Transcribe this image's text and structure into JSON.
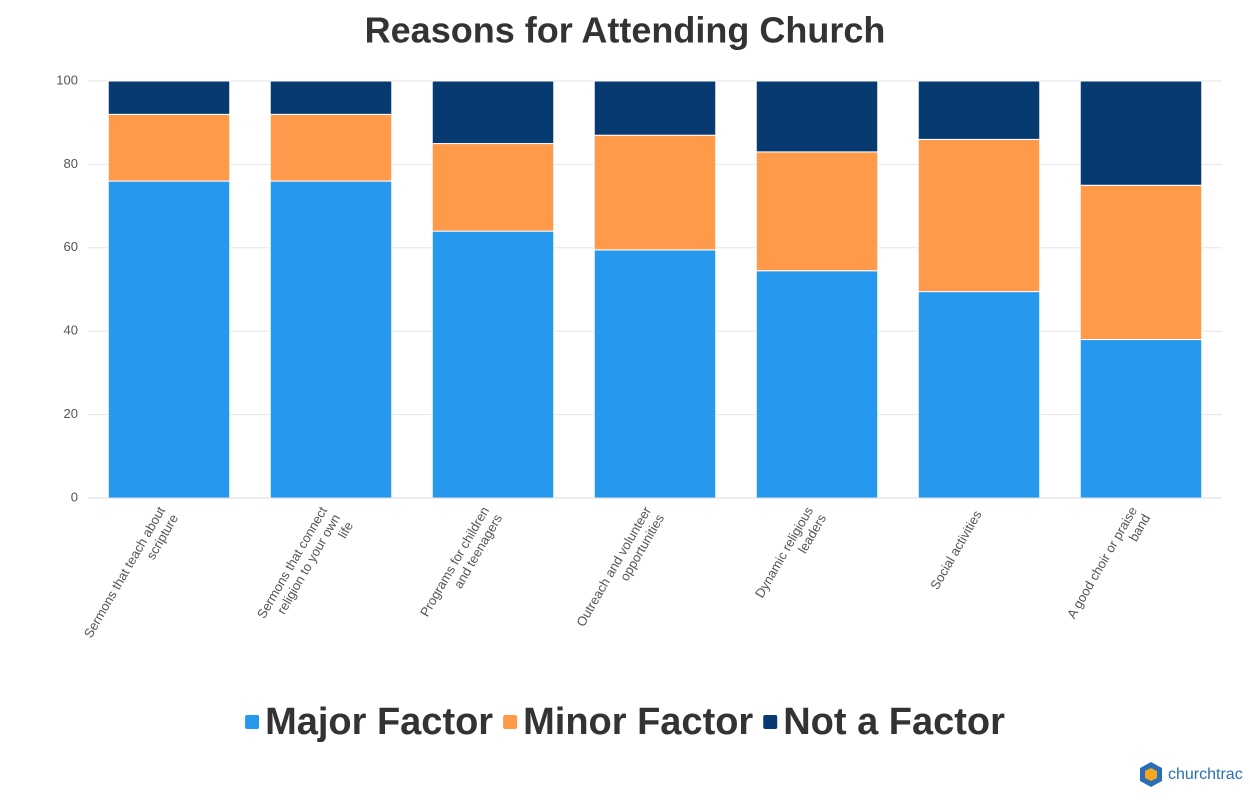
{
  "chart_data": {
    "type": "stacked-bar",
    "title": "Reasons for Attending Church",
    "categories": [
      "Sermons that teach about scripture",
      "Sermons that connect religion to your own life",
      "Programs for children and teenagers",
      "Outreach and volunteer opportunities",
      "Dynamic religious leaders",
      "Social activities",
      "A good choir or praise band"
    ],
    "series": [
      {
        "name": "Major Factor",
        "color": "#2699ee",
        "values": [
          76,
          76,
          64,
          59.5,
          54.5,
          49.5,
          38
        ]
      },
      {
        "name": "Minor Factor",
        "color": "#ff9a4b",
        "values": [
          16,
          16,
          21,
          27.5,
          28.5,
          36.5,
          37
        ]
      },
      {
        "name": "Not a Factor",
        "color": "#073a70",
        "values": [
          8,
          8,
          15,
          13,
          17,
          14,
          25
        ]
      }
    ],
    "ylim": [
      0,
      100
    ],
    "yticks": [
      0,
      20,
      40,
      60,
      80,
      100
    ],
    "grid": true,
    "legend": "bottom",
    "brand": "churchtrac"
  }
}
